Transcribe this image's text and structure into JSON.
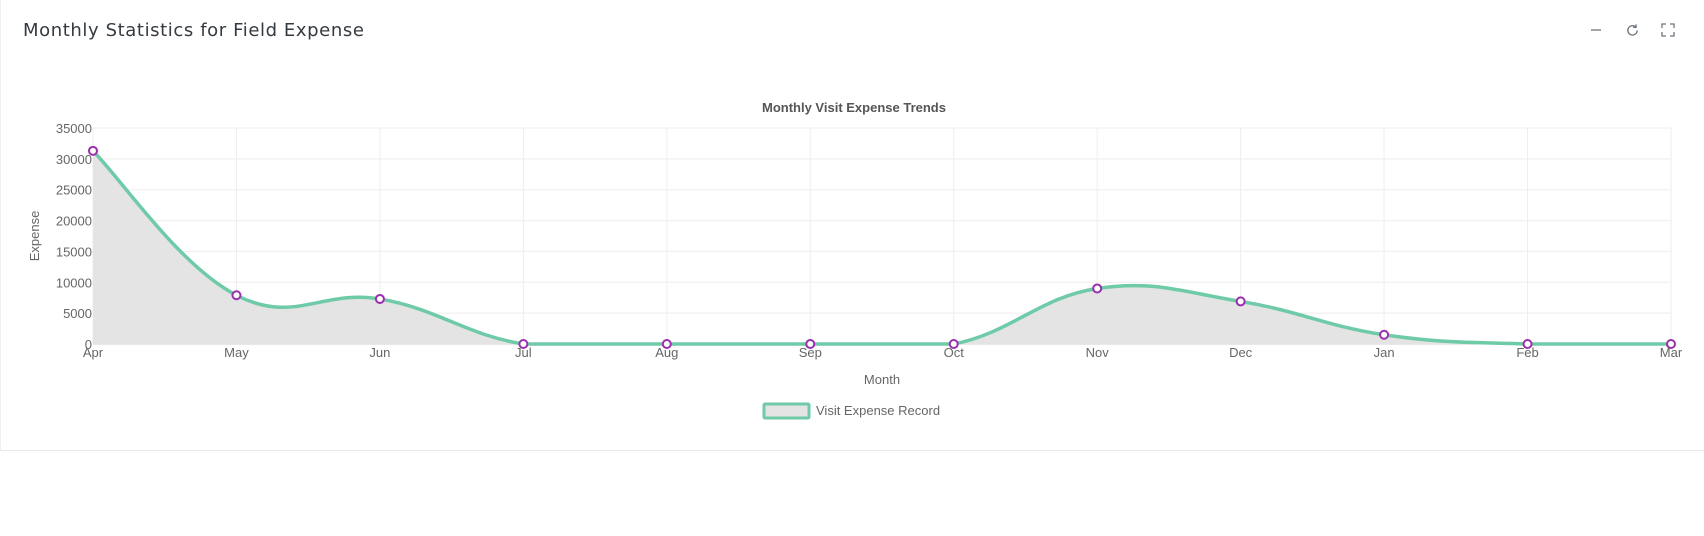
{
  "card": {
    "title": "Monthly Statistics for Field Expense",
    "tools": [
      {
        "name": "minimize-icon"
      },
      {
        "name": "refresh-icon"
      },
      {
        "name": "fullscreen-icon"
      }
    ]
  },
  "colors": {
    "line": "#6fcaa8",
    "fill": "#e4e4e4",
    "point_border": "#9b2fae",
    "point_fill": "#ffffff",
    "grid": "#eeeeee",
    "text": "#666666",
    "title": "#555555"
  },
  "chart_data": {
    "type": "area",
    "title": "Monthly Visit Expense Trends",
    "xlabel": "Month",
    "ylabel": "Expense",
    "categories": [
      "Apr",
      "May",
      "Jun",
      "Jul",
      "Aug",
      "Sep",
      "Oct",
      "Nov",
      "Dec",
      "Jan",
      "Feb",
      "Mar"
    ],
    "series": [
      {
        "name": "Visit Expense Record",
        "values": [
          31300,
          7900,
          7300,
          0,
          0,
          0,
          0,
          9000,
          6900,
          1500,
          0,
          0
        ]
      }
    ],
    "ylim": [
      0,
      35000
    ],
    "yticks": [
      0,
      5000,
      10000,
      15000,
      20000,
      25000,
      30000,
      35000
    ],
    "grid": true,
    "legend_position": "bottom"
  }
}
